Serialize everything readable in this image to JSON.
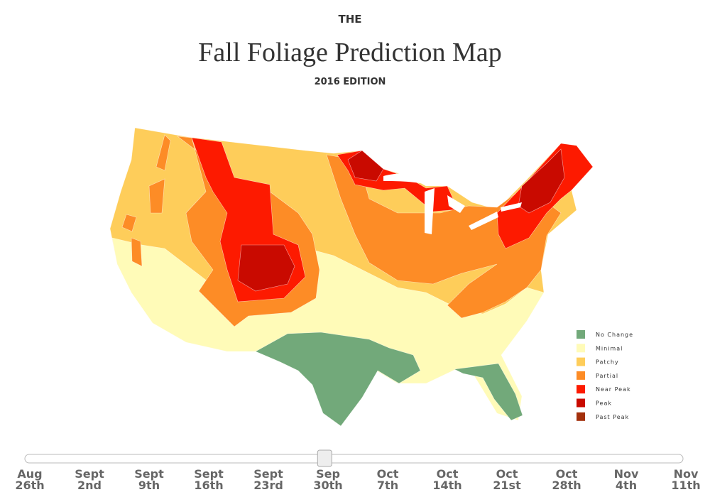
{
  "header": {
    "kicker": "THE",
    "title": "Fall Foliage Prediction Map",
    "edition": "2016 EDITION"
  },
  "legend": [
    {
      "label": "No Change",
      "color": "#72a97a"
    },
    {
      "label": "Minimal",
      "color": "#fffbb8"
    },
    {
      "label": "Patchy",
      "color": "#fecd5a"
    },
    {
      "label": "Partial",
      "color": "#fd8c26"
    },
    {
      "label": "Near Peak",
      "color": "#fd1a00"
    },
    {
      "label": "Peak",
      "color": "#c90a00"
    },
    {
      "label": "Past Peak",
      "color": "#a3300c"
    }
  ],
  "slider": {
    "value": 5,
    "ticks": [
      {
        "month": "Aug",
        "day": "26th"
      },
      {
        "month": "Sept",
        "day": "2nd"
      },
      {
        "month": "Sept",
        "day": "9th"
      },
      {
        "month": "Sept",
        "day": "16th"
      },
      {
        "month": "Sept",
        "day": "23rd"
      },
      {
        "month": "Sep",
        "day": "30th"
      },
      {
        "month": "Oct",
        "day": "7th"
      },
      {
        "month": "Oct",
        "day": "14th"
      },
      {
        "month": "Oct",
        "day": "21st"
      },
      {
        "month": "Oct",
        "day": "28th"
      },
      {
        "month": "Nov",
        "day": "4th"
      },
      {
        "month": "Nov",
        "day": "11th"
      }
    ]
  }
}
